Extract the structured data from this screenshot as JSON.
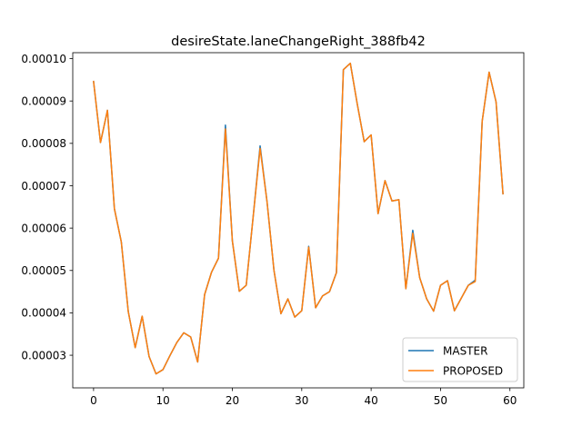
{
  "chart_data": {
    "type": "line",
    "title": "desireState.laneChangeRight_388fb42",
    "xlabel": "",
    "ylabel": "",
    "xlim": [
      -3,
      62
    ],
    "ylim": [
      2.23e-05,
      0.0001014
    ],
    "x_ticks": [
      0,
      10,
      20,
      30,
      40,
      50,
      60
    ],
    "x_tick_labels": [
      "0",
      "10",
      "20",
      "30",
      "40",
      "50",
      "60"
    ],
    "y_ticks": [
      3e-05,
      4e-05,
      5e-05,
      6e-05,
      7e-05,
      8e-05,
      9e-05,
      0.0001
    ],
    "y_tick_labels": [
      "0.00003",
      "0.00004",
      "0.00005",
      "0.00006",
      "0.00007",
      "0.00008",
      "0.00009",
      "0.00010"
    ],
    "grid": false,
    "legend_position": "bottom-right",
    "x": [
      0,
      1,
      2,
      3,
      4,
      5,
      6,
      7,
      8,
      9,
      10,
      11,
      12,
      13,
      14,
      15,
      16,
      17,
      18,
      19,
      20,
      21,
      22,
      23,
      24,
      25,
      26,
      27,
      28,
      29,
      30,
      31,
      32,
      33,
      34,
      35,
      36,
      37,
      38,
      39,
      40,
      41,
      42,
      43,
      44,
      45,
      46,
      47,
      48,
      49,
      50,
      51,
      52,
      53,
      54,
      55,
      56,
      57,
      58,
      59
    ],
    "series": [
      {
        "name": "MASTER",
        "color": "#1f77b4",
        "values": [
          9.46e-05,
          8.02e-05,
          8.78e-05,
          6.46e-05,
          5.67e-05,
          4.03e-05,
          3.18e-05,
          3.92e-05,
          2.97e-05,
          2.56e-05,
          2.66e-05,
          2.99e-05,
          3.3e-05,
          3.53e-05,
          3.43e-05,
          2.84e-05,
          4.43e-05,
          4.96e-05,
          5.29e-05,
          8.43e-05,
          5.7e-05,
          4.51e-05,
          4.65e-05,
          6.27e-05,
          7.94e-05,
          6.62e-05,
          5e-05,
          3.98e-05,
          4.33e-05,
          3.9e-05,
          4.05e-05,
          5.57e-05,
          4.12e-05,
          4.4e-05,
          4.5e-05,
          4.95e-05,
          9.74e-05,
          9.89e-05,
          8.93e-05,
          8.04e-05,
          8.2e-05,
          6.34e-05,
          7.12e-05,
          6.64e-05,
          6.67e-05,
          4.57e-05,
          5.95e-05,
          4.83e-05,
          4.33e-05,
          4.04e-05,
          4.65e-05,
          4.76e-05,
          4.05e-05,
          4.35e-05,
          4.65e-05,
          4.77e-05,
          8.52e-05,
          9.68e-05,
          8.98e-05,
          6.81e-05
        ]
      },
      {
        "name": "PROPOSED",
        "color": "#ff7f0e",
        "values": [
          9.46e-05,
          8.02e-05,
          8.78e-05,
          6.46e-05,
          5.67e-05,
          4.03e-05,
          3.18e-05,
          3.92e-05,
          2.97e-05,
          2.56e-05,
          2.66e-05,
          2.99e-05,
          3.3e-05,
          3.53e-05,
          3.43e-05,
          2.84e-05,
          4.43e-05,
          4.96e-05,
          5.29e-05,
          8.34e-05,
          5.7e-05,
          4.51e-05,
          4.65e-05,
          6.27e-05,
          7.88e-05,
          6.62e-05,
          5e-05,
          3.98e-05,
          4.33e-05,
          3.9e-05,
          4.05e-05,
          5.55e-05,
          4.12e-05,
          4.4e-05,
          4.5e-05,
          4.95e-05,
          9.74e-05,
          9.89e-05,
          8.93e-05,
          8.04e-05,
          8.2e-05,
          6.34e-05,
          7.12e-05,
          6.64e-05,
          6.67e-05,
          4.57e-05,
          5.88e-05,
          4.83e-05,
          4.33e-05,
          4.04e-05,
          4.65e-05,
          4.76e-05,
          4.05e-05,
          4.35e-05,
          4.65e-05,
          4.74e-05,
          8.52e-05,
          9.68e-05,
          8.98e-05,
          6.81e-05
        ]
      }
    ]
  }
}
